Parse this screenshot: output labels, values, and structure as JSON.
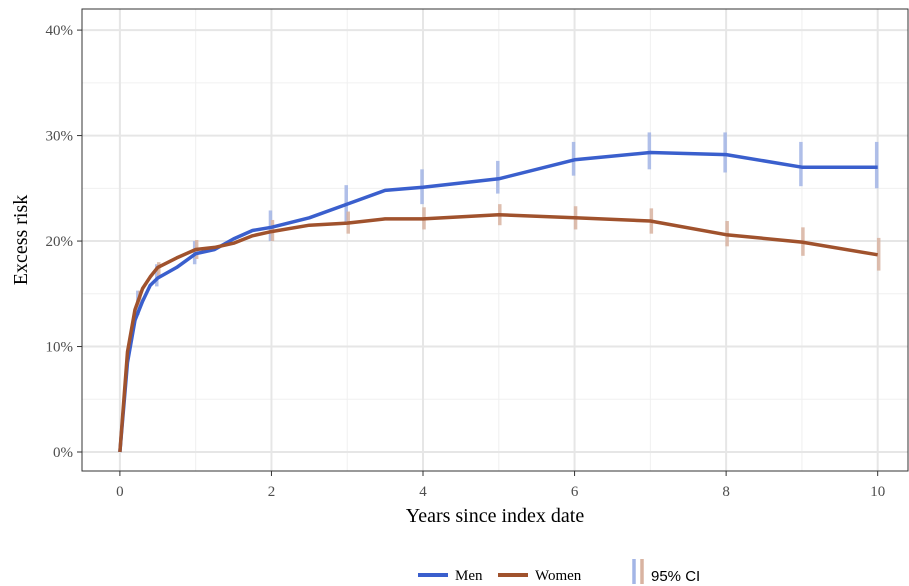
{
  "chart_data": {
    "type": "line",
    "title": "",
    "xlabel": "Years since index date",
    "ylabel": "Excess risk",
    "xlim": [
      -0.5,
      10.4
    ],
    "ylim": [
      -1.8,
      42
    ],
    "x_ticks": [
      0,
      2,
      4,
      6,
      8,
      10
    ],
    "y_ticks": [
      0,
      10,
      20,
      30,
      40
    ],
    "y_tick_labels": [
      "0%",
      "10%",
      "20%",
      "30%",
      "40%"
    ],
    "grid": true,
    "legend_position": "bottom",
    "ci_legend_label": "95% CI",
    "series": [
      {
        "name": "Men",
        "color": "#3a5fcd",
        "ci_color": "#a3b5e6",
        "x": [
          0,
          0.1,
          0.2,
          0.3,
          0.4,
          0.5,
          0.75,
          1,
          1.25,
          1.5,
          1.75,
          2,
          2.5,
          3,
          3.5,
          4,
          5,
          6,
          7,
          8,
          9,
          10
        ],
        "y": [
          0,
          8.5,
          12.5,
          14.3,
          15.8,
          16.5,
          17.5,
          18.8,
          19.2,
          20.2,
          21.0,
          21.3,
          22.2,
          23.5,
          24.8,
          25.1,
          25.9,
          27.7,
          28.4,
          28.2,
          27.0,
          27.0
        ],
        "ci_x": [
          0.25,
          0.5,
          1,
          2,
          3,
          4,
          5,
          6,
          7,
          8,
          9,
          10
        ],
        "ci_low": [
          13.0,
          15.7,
          17.8,
          20.0,
          21.7,
          23.5,
          24.5,
          26.2,
          26.8,
          26.5,
          25.2,
          25.0
        ],
        "ci_high": [
          15.3,
          17.8,
          20.0,
          22.9,
          25.3,
          26.8,
          27.6,
          29.4,
          30.3,
          30.3,
          29.4,
          29.4
        ]
      },
      {
        "name": "Women",
        "color": "#a0522d",
        "ci_color": "#d9b3a1",
        "x": [
          0,
          0.1,
          0.2,
          0.3,
          0.4,
          0.5,
          0.75,
          1,
          1.25,
          1.5,
          1.75,
          2,
          2.5,
          3,
          3.5,
          4,
          5,
          6,
          7,
          8,
          9,
          10
        ],
        "y": [
          0,
          9.5,
          13.5,
          15.5,
          16.6,
          17.5,
          18.4,
          19.2,
          19.4,
          19.8,
          20.5,
          20.9,
          21.5,
          21.7,
          22.1,
          22.1,
          22.5,
          22.2,
          21.9,
          20.6,
          19.9,
          18.7
        ],
        "ci_x": [
          0.25,
          0.5,
          1,
          2,
          3,
          4,
          5,
          6,
          7,
          8,
          9,
          10
        ],
        "ci_low": [
          13.8,
          16.5,
          18.3,
          20.0,
          20.7,
          21.1,
          21.5,
          21.1,
          20.7,
          19.5,
          18.6,
          17.2
        ],
        "ci_high": [
          15.3,
          18.0,
          20.1,
          22.0,
          22.8,
          23.2,
          23.5,
          23.3,
          23.1,
          21.9,
          21.3,
          20.3
        ]
      }
    ]
  }
}
